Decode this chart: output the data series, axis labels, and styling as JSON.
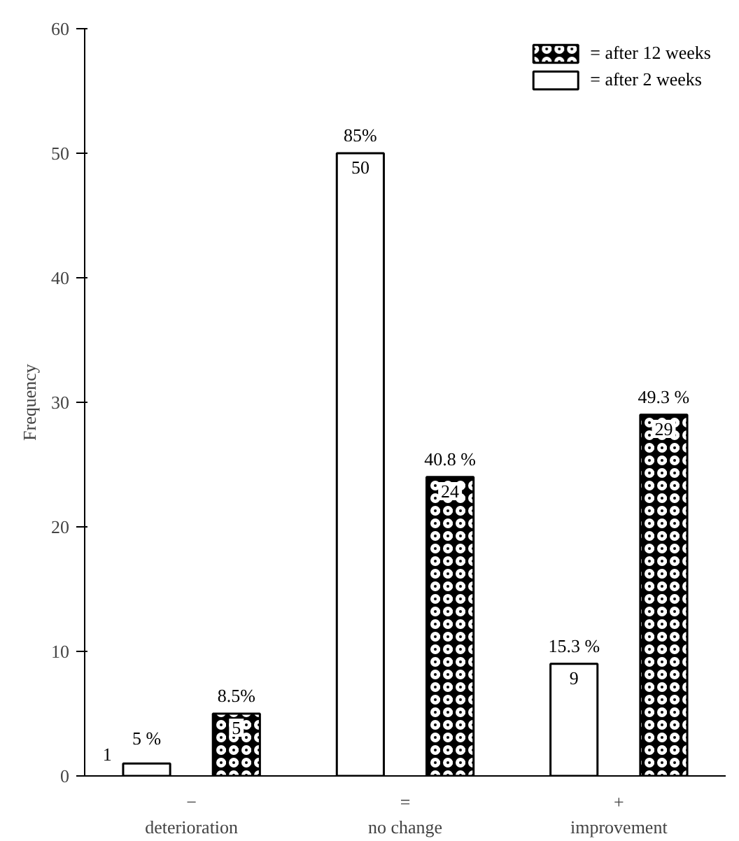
{
  "chart_data": {
    "type": "bar",
    "ylabel": "Frequency",
    "categories": [
      "−\ndeterioration",
      "=\nno change",
      "+\nimprovement"
    ],
    "series": [
      {
        "name": "= after 2 weeks",
        "color": "#ffffff",
        "values": [
          1,
          50,
          9
        ],
        "value_labels": [
          "1",
          "50",
          "9"
        ]
      },
      {
        "name": "= after 12 weeks",
        "color": "#000000",
        "values": [
          5,
          24,
          29
        ],
        "value_labels": [
          "5",
          "24",
          "29"
        ]
      }
    ],
    "annotations": [
      "5 %",
      "85%",
      "15.3 %",
      "8.5%",
      "40.8 %",
      "49.3 %"
    ],
    "ylim": [
      0,
      60
    ],
    "yticks": [
      0,
      10,
      20,
      30,
      40,
      50,
      60
    ],
    "grid": false,
    "legend": "top right"
  }
}
